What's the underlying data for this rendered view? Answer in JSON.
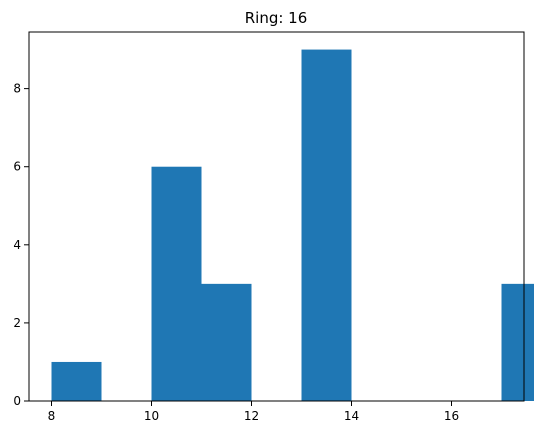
{
  "chart_data": {
    "type": "bar",
    "title": "Ring: 16",
    "xlabel": "",
    "ylabel": "",
    "xlim": [
      7.55,
      17.45
    ],
    "ylim": [
      0,
      9.45
    ],
    "xticks": [
      8,
      10,
      12,
      14,
      16
    ],
    "yticks": [
      0,
      2,
      4,
      6,
      8
    ],
    "grid": false,
    "bar_color": "#1f77b4",
    "bins": [
      {
        "x0": 8.0,
        "x1": 9.0,
        "count": 1
      },
      {
        "x0": 9.0,
        "x1": 10.0,
        "count": 0
      },
      {
        "x0": 10.0,
        "x1": 11.0,
        "count": 6
      },
      {
        "x0": 11.0,
        "x1": 12.0,
        "count": 3
      },
      {
        "x0": 12.0,
        "x1": 13.0,
        "count": 0
      },
      {
        "x0": 13.0,
        "x1": 14.0,
        "count": 9
      },
      {
        "x0": 14.0,
        "x1": 15.0,
        "count": 0
      },
      {
        "x0": 15.0,
        "x1": 16.0,
        "count": 0
      },
      {
        "x0": 16.0,
        "x1": 17.0,
        "count": 0
      },
      {
        "x0": 17.0,
        "x1": 18.0,
        "count": 3
      }
    ]
  }
}
